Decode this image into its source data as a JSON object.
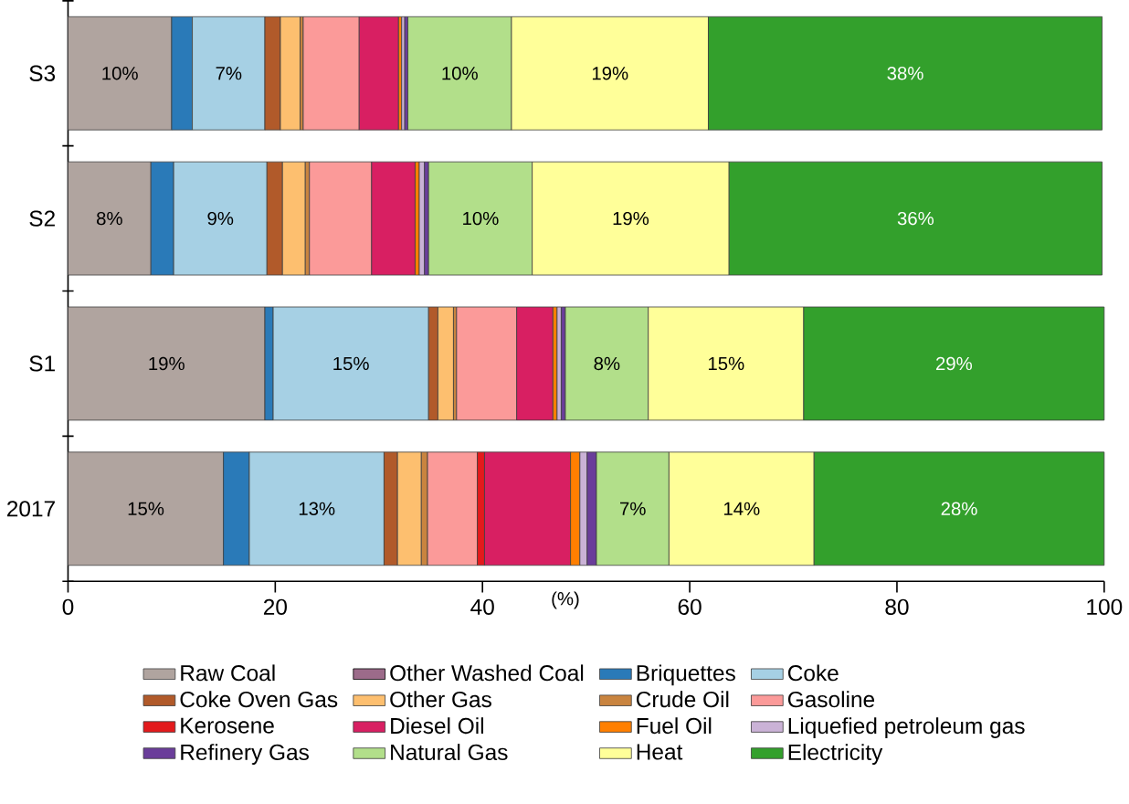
{
  "chart_data": {
    "type": "bar",
    "orientation": "horizontal",
    "stacked": true,
    "xlabel": "(%)",
    "categories": [
      "S3",
      "S2",
      "S1",
      "2017"
    ],
    "xlim": [
      0,
      100
    ],
    "xticks": [
      0,
      20,
      40,
      60,
      80,
      100
    ],
    "legend": "bottom",
    "series": [
      {
        "name": "Raw Coal",
        "color": "#b0a49f",
        "values": [
          10,
          8,
          19,
          15
        ],
        "value_labels": [
          "10%",
          "8%",
          "19%",
          "15%"
        ]
      },
      {
        "name": "Other Washed Coal",
        "color": "#9c6b8a",
        "values": [
          null,
          null,
          null,
          null
        ]
      },
      {
        "name": "Briquettes",
        "color": "#2a7ab8",
        "values": [
          2.0,
          2.2,
          0.8,
          2.5
        ]
      },
      {
        "name": "Coke",
        "color": "#a6d0e4",
        "values": [
          7,
          9,
          15,
          13
        ],
        "value_labels": [
          "7%",
          "9%",
          "15%",
          "13%"
        ]
      },
      {
        "name": "Coke Oven Gas",
        "color": "#b15a2a",
        "values": [
          1.5,
          1.5,
          0.9,
          1.3
        ]
      },
      {
        "name": "Other Gas",
        "color": "#fdbf6f",
        "values": [
          1.9,
          2.2,
          1.5,
          2.3
        ]
      },
      {
        "name": "Crude Oil",
        "color": "#c9843f",
        "values": [
          0.3,
          0.4,
          0.3,
          0.6
        ]
      },
      {
        "name": "Gasoline",
        "color": "#fb9a99",
        "values": [
          5.4,
          6.0,
          5.8,
          4.8
        ]
      },
      {
        "name": "Kerosene",
        "color": "#e31a1c",
        "values": [
          null,
          null,
          null,
          0.7
        ]
      },
      {
        "name": "Diesel Oil",
        "color": "#d81f62",
        "values": [
          3.8,
          4.2,
          3.5,
          8.3
        ]
      },
      {
        "name": "Fuel Oil",
        "color": "#ff7f00",
        "values": [
          0.3,
          0.4,
          0.4,
          0.9
        ]
      },
      {
        "name": "Liquefied petroleum gas",
        "color": "#cab2d6",
        "values": [
          0.3,
          0.5,
          0.4,
          0.7
        ]
      },
      {
        "name": "Refinery Gas",
        "color": "#6a3d9a",
        "values": [
          0.3,
          0.4,
          0.4,
          0.9
        ]
      },
      {
        "name": "Natural Gas",
        "color": "#b2df8a",
        "values": [
          10,
          10,
          8,
          7
        ],
        "value_labels": [
          "10%",
          "10%",
          "8%",
          "7%"
        ]
      },
      {
        "name": "Heat",
        "color": "#ffff99",
        "values": [
          19,
          19,
          15,
          14
        ],
        "value_labels": [
          "19%",
          "19%",
          "15%",
          "14%"
        ]
      },
      {
        "name": "Electricity",
        "color": "#33a02c",
        "values": [
          38,
          36,
          29,
          28
        ],
        "value_labels": [
          "38%",
          "36%",
          "29%",
          "28%"
        ]
      }
    ]
  }
}
